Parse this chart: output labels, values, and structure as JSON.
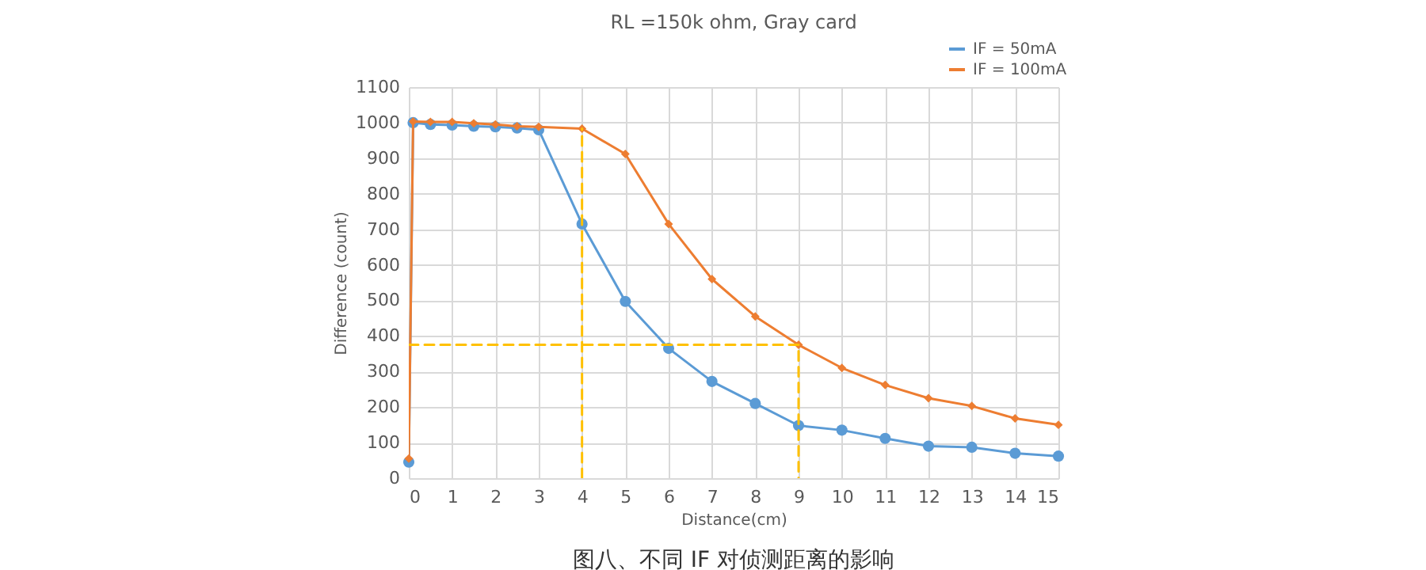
{
  "chart_data": {
    "type": "line",
    "title": "RL =150k ohm, Gray card",
    "xlabel": "Distance(cm)",
    "ylabel": "Difference (count)",
    "annotations": [
      "图八、不同 IF 对侦测距离的影响"
    ],
    "xlim": [
      0,
      15
    ],
    "xticks": [
      0,
      1,
      2,
      3,
      4,
      5,
      6,
      7,
      8,
      9,
      10,
      11,
      12,
      13,
      14,
      15
    ],
    "ylim": [
      0,
      1100
    ],
    "yticks": [
      0,
      100,
      200,
      300,
      400,
      500,
      600,
      700,
      800,
      900,
      1000,
      1100
    ],
    "grid": true,
    "legend": "top right",
    "series": [
      {
        "name": "IF = 50mA",
        "color": "#5b9bd5",
        "marker": "circle",
        "x": [
          0,
          0.1,
          0.5,
          1,
          1.5,
          2,
          2.5,
          3,
          4,
          5,
          6,
          7,
          8,
          9,
          10,
          11,
          12,
          13,
          14,
          15
        ],
        "values": [
          45,
          1000,
          995,
          993,
          990,
          988,
          985,
          980,
          715,
          497,
          365,
          272,
          210,
          148,
          135,
          112,
          90,
          87,
          70,
          62
        ]
      },
      {
        "name": "IF = 100mA",
        "color": "#ed7d31",
        "marker": "diamond",
        "x": [
          0,
          0.1,
          0.5,
          1,
          1.5,
          2,
          2.5,
          3,
          4,
          5,
          6,
          7,
          8,
          9,
          10,
          11,
          12,
          13,
          14,
          15
        ],
        "values": [
          55,
          1003,
          1002,
          1002,
          998,
          995,
          990,
          988,
          983,
          912,
          715,
          560,
          455,
          375,
          310,
          262,
          225,
          203,
          168,
          150
        ]
      },
      {
        "color": "#ffc000",
        "line_style": "dashed",
        "marker": "none",
        "x": [
          4,
          4
        ],
        "values": [
          0,
          983
        ]
      },
      {
        "color": "#ffc000",
        "line_style": "dashed",
        "marker": "none",
        "x": [
          0,
          9,
          9
        ],
        "values": [
          375,
          375,
          0
        ]
      }
    ]
  }
}
